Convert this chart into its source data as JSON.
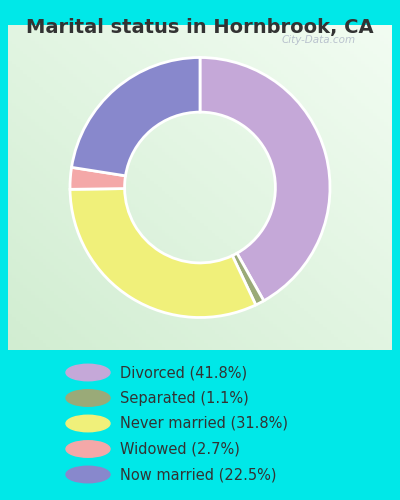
{
  "title": "Marital status in Hornbrook, CA",
  "slices": [
    41.8,
    1.1,
    31.8,
    2.7,
    22.5
  ],
  "labels": [
    "Divorced (41.8%)",
    "Separated (1.1%)",
    "Never married (31.8%)",
    "Widowed (2.7%)",
    "Now married (22.5%)"
  ],
  "colors": [
    "#c5a8d8",
    "#9aaa78",
    "#f0f07a",
    "#f4a8a8",
    "#8888cc"
  ],
  "background_color": "#00e8e8",
  "title_fontsize": 14,
  "legend_fontsize": 10.5,
  "donut_width": 0.42,
  "start_angle": 90,
  "text_color": "#333333"
}
